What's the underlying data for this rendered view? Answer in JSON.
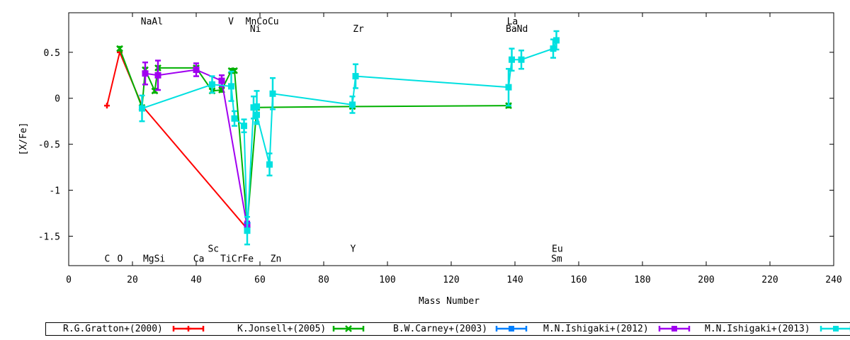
{
  "chart_data": {
    "type": "scatter",
    "xlabel": "Mass Number",
    "ylabel": "[X/Fe]",
    "xlim": [
      0,
      240
    ],
    "ylim": [
      -1.82,
      0.93
    ],
    "xticks": [
      0,
      20,
      40,
      60,
      80,
      100,
      120,
      140,
      160,
      180,
      200,
      220,
      240
    ],
    "yticks": [
      0.5,
      0,
      -0.5,
      -1,
      -1.5
    ],
    "ytick_labels": [
      "0.5",
      "0",
      "-0.5",
      "-1",
      "-1.5"
    ],
    "grid": false,
    "legend_position": "bottom",
    "element_labels_top": [
      {
        "text": "NaAl",
        "x": 26.1,
        "y": 0.84
      },
      {
        "text": "V",
        "x": 50.9,
        "y": 0.84
      },
      {
        "text": "MnCoCu",
        "x": 60.7,
        "y": 0.84
      },
      {
        "text": "Ni",
        "x": 58.6,
        "y": 0.76
      },
      {
        "text": "Zr",
        "x": 90.9,
        "y": 0.76
      },
      {
        "text": "La",
        "x": 139.2,
        "y": 0.84
      },
      {
        "text": "BaNd",
        "x": 140.6,
        "y": 0.76
      }
    ],
    "element_labels_bottom": [
      {
        "text": "Sc",
        "x": 45.4,
        "y": -1.63
      },
      {
        "text": "Y",
        "x": 89.2,
        "y": -1.63
      },
      {
        "text": "Eu",
        "x": 153.3,
        "y": -1.63
      },
      {
        "text": "C",
        "x": 12.1,
        "y": -1.74
      },
      {
        "text": "O",
        "x": 16.1,
        "y": -1.74
      },
      {
        "text": "MgSi",
        "x": 26.8,
        "y": -1.74
      },
      {
        "text": "Ca",
        "x": 40.8,
        "y": -1.74
      },
      {
        "text": "TiCrFe",
        "x": 52.8,
        "y": -1.74
      },
      {
        "text": "Zn",
        "x": 65.0,
        "y": -1.74
      },
      {
        "text": "Sm",
        "x": 153.1,
        "y": -1.74
      }
    ],
    "series": [
      {
        "name": "R.G.Gratton+(2000)",
        "color": "#ff0000",
        "marker": "plus",
        "points": [
          {
            "x": 12,
            "y": -0.08,
            "err": 0
          },
          {
            "x": 16,
            "y": 0.5,
            "err": 0
          },
          {
            "x": 23,
            "y": -0.08,
            "err": 0
          },
          {
            "x": 56,
            "y": -1.42,
            "err": 0
          }
        ]
      },
      {
        "name": "K.Jonsell+(2005)",
        "color": "#00b000",
        "marker": "x",
        "points": [
          {
            "x": 16,
            "y": 0.54,
            "err": 0.02
          },
          {
            "x": 23,
            "y": -0.1,
            "err": 0.02
          },
          {
            "x": 24,
            "y": 0.31,
            "err": 0.02
          },
          {
            "x": 27,
            "y": 0.08,
            "err": 0.02
          },
          {
            "x": 28,
            "y": 0.33,
            "err": 0.02
          },
          {
            "x": 40,
            "y": 0.33,
            "err": 0.02
          },
          {
            "x": 45,
            "y": 0.08,
            "err": 0.02
          },
          {
            "x": 48,
            "y": 0.09,
            "err": 0.02
          },
          {
            "x": 51,
            "y": 0.3,
            "err": 0.02
          },
          {
            "x": 52,
            "y": 0.3,
            "err": 0.02
          },
          {
            "x": 56,
            "y": -1.38,
            "err": 0.02
          },
          {
            "x": 59,
            "y": -0.1,
            "err": 0.02
          },
          {
            "x": 89,
            "y": -0.09,
            "err": 0.02
          },
          {
            "x": 138,
            "y": -0.08,
            "err": 0.02
          }
        ]
      },
      {
        "name": "B.W.Carney+(2003)",
        "color": "#0080ff",
        "marker": "square",
        "points": [
          {
            "x": 56,
            "y": -1.38,
            "err": 0.03
          }
        ]
      },
      {
        "name": "M.N.Ishigaki+(2012)",
        "color": "#a000f0",
        "marker": "square",
        "points": [
          {
            "x": 24,
            "y": 0.27,
            "err": 0.12
          },
          {
            "x": 28,
            "y": 0.25,
            "err": 0.16
          },
          {
            "x": 40,
            "y": 0.31,
            "err": 0.07
          },
          {
            "x": 48,
            "y": 0.19,
            "err": 0.06
          },
          {
            "x": 56,
            "y": -1.4,
            "err": 0.06
          }
        ]
      },
      {
        "name": "M.N.Ishigaki+(2013)",
        "color": "#00e0e0",
        "marker": "square",
        "points": [
          {
            "x": 23,
            "y": -0.11,
            "err": 0.14
          },
          {
            "x": 45,
            "y": 0.15,
            "err": 0.09
          },
          {
            "x": 51,
            "y": 0.13,
            "err": 0.16
          },
          {
            "x": 52,
            "y": -0.22,
            "err": 0.08
          },
          {
            "x": 55,
            "y": -0.3,
            "err": 0.07
          },
          {
            "x": 56,
            "y": -1.44,
            "err": 0.15
          },
          {
            "x": 58,
            "y": -0.1,
            "err": 0.12
          },
          {
            "x": 59,
            "y": -0.09,
            "err": 0.17
          },
          {
            "x": 59,
            "y": -0.18,
            "err": 0.1
          },
          {
            "x": 63,
            "y": -0.72,
            "err": 0.12
          },
          {
            "x": 64,
            "y": 0.05,
            "err": 0.17
          },
          {
            "x": 89,
            "y": -0.07,
            "err": 0.09
          },
          {
            "x": 90,
            "y": 0.24,
            "err": 0.13
          },
          {
            "x": 138,
            "y": 0.12,
            "err": 0.2
          },
          {
            "x": 139,
            "y": 0.42,
            "err": 0.12
          },
          {
            "x": 142,
            "y": 0.42,
            "err": 0.1
          },
          {
            "x": 152,
            "y": 0.54,
            "err": 0.1
          },
          {
            "x": 153,
            "y": 0.63,
            "err": 0.1
          }
        ]
      }
    ]
  }
}
